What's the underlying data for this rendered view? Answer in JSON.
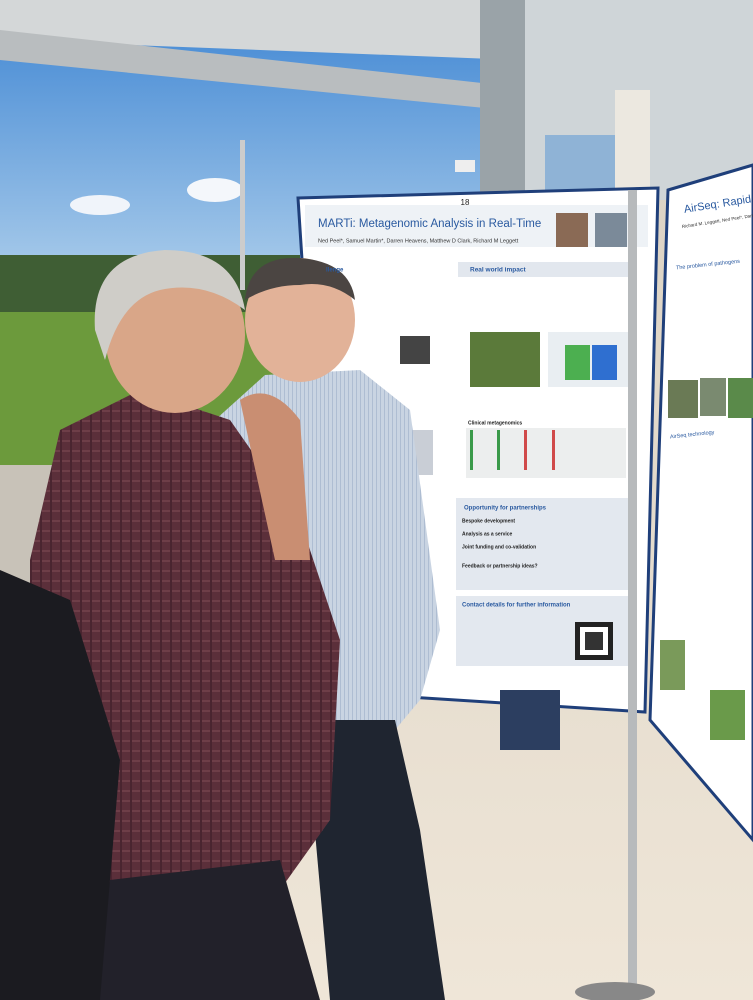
{
  "poster_number": "18",
  "main_poster": {
    "title": "MARTi: Metagenomic Analysis in Real-Time",
    "authors": "Ned Peel*, Samuel Martin*, Darren Heavens, Matthew D Clark, Richard M Leggett",
    "sections": [
      "llenge",
      "Real world impact",
      "Clinical metagenomics",
      "Opportunity for partnerships",
      "Bespoke development",
      "Analysis as a service",
      "Joint funding and co-validation",
      "Feedback or partnership ideas?",
      "Contact details for further information"
    ]
  },
  "side_poster": {
    "title": "AirSeq: Rapid unb",
    "authors": "Richard M. Leggett, Ned Peel*, Darren Heave",
    "sections": [
      "The problem of pathogens",
      "AirSeq technology"
    ]
  }
}
